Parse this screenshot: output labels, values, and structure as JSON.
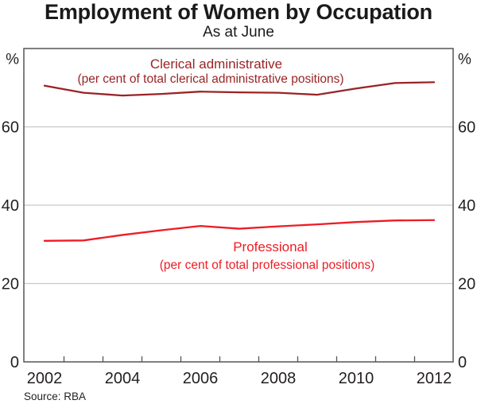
{
  "colors": {
    "grid": "#c7c8ca",
    "frame": "#555555",
    "text": "#231f20",
    "clerical_red": "#992426",
    "professional_red": "#ed1c24"
  },
  "chart_data": {
    "type": "line",
    "title": "Employment of Women by Occupation",
    "subtitle": "As at June",
    "unit_left": "%",
    "unit_right": "%",
    "x": [
      2002,
      2003,
      2004,
      2005,
      2006,
      2007,
      2008,
      2009,
      2010,
      2011,
      2012
    ],
    "xticklabels": [
      2002,
      2004,
      2006,
      2008,
      2010,
      2012
    ],
    "ylim": [
      0,
      80
    ],
    "yticks": [
      0,
      20,
      40,
      60
    ],
    "grid": true,
    "frame": true,
    "legend_position": "inline-annotations",
    "series": [
      {
        "name": "Clerical administrative",
        "sublabel": "(per cent of total clerical administrative positions)",
        "color": "#992426",
        "values": [
          70.5,
          68.7,
          68.0,
          68.4,
          69.0,
          68.8,
          68.7,
          68.2,
          69.8,
          71.2,
          71.4
        ],
        "label_pos": {
          "x": 272,
          "y": 86
        },
        "sublabel_pos": {
          "x": 265,
          "y": 104
        }
      },
      {
        "name": "Professional",
        "sublabel": "(per cent of total professional positions)",
        "color": "#ed1c24",
        "values": [
          30.9,
          31.0,
          32.4,
          33.6,
          34.7,
          34.0,
          34.6,
          35.1,
          35.7,
          36.1,
          36.2
        ],
        "label_pos": {
          "x": 340,
          "y": 316
        },
        "sublabel_pos": {
          "x": 336,
          "y": 338
        }
      }
    ],
    "source": "Source: RBA"
  }
}
